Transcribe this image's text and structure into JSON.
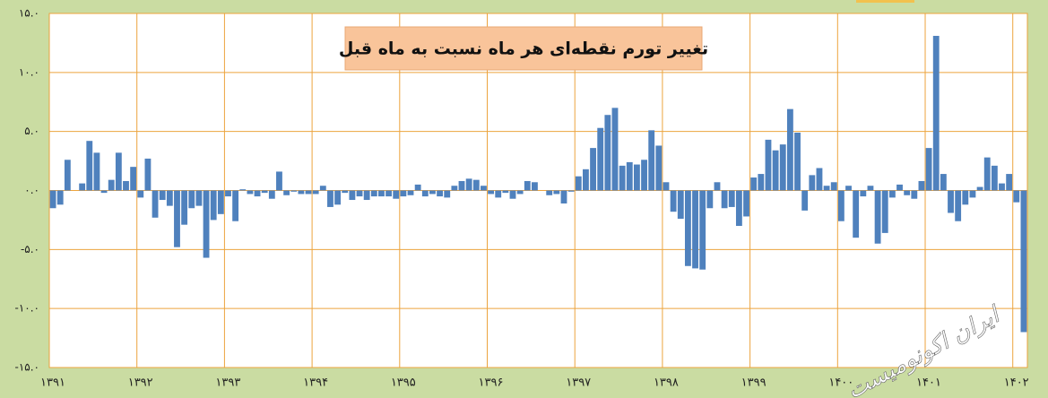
{
  "chart_data": {
    "type": "bar",
    "title": "تغییر تورم نقطه‌ای هر ماه نسبت به ماه قبل",
    "watermark": "ایران اکونومیست",
    "color": "#4f81bd",
    "grid": true,
    "ylim": [
      -15,
      15
    ],
    "yticks": [
      {
        "value": -15,
        "label": "-۱۵.۰"
      },
      {
        "value": -10,
        "label": "-۱۰.۰"
      },
      {
        "value": -5,
        "label": "-۵.۰"
      },
      {
        "value": 0,
        "label": "۰.۰"
      },
      {
        "value": 5,
        "label": "۵.۰"
      },
      {
        "value": 10,
        "label": "۱۰.۰"
      },
      {
        "value": 15,
        "label": "۱۵.۰"
      }
    ],
    "categories": [
      "۱۳۹۱",
      null,
      null,
      null,
      null,
      null,
      null,
      null,
      null,
      null,
      null,
      null,
      "۱۳۹۲",
      null,
      null,
      null,
      null,
      null,
      null,
      null,
      null,
      null,
      null,
      null,
      "۱۳۹۳",
      null,
      null,
      null,
      null,
      null,
      null,
      null,
      null,
      null,
      null,
      null,
      "۱۳۹۴",
      null,
      null,
      null,
      null,
      null,
      null,
      null,
      null,
      null,
      null,
      null,
      "۱۳۹۵",
      null,
      null,
      null,
      null,
      null,
      null,
      null,
      null,
      null,
      null,
      null,
      "۱۳۹۶",
      null,
      null,
      null,
      null,
      null,
      null,
      null,
      null,
      null,
      null,
      null,
      "۱۳۹۷",
      null,
      null,
      null,
      null,
      null,
      null,
      null,
      null,
      null,
      null,
      null,
      "۱۳۹۸",
      null,
      null,
      null,
      null,
      null,
      null,
      null,
      null,
      null,
      null,
      null,
      "۱۳۹۹",
      null,
      null,
      null,
      null,
      null,
      null,
      null,
      null,
      null,
      null,
      null,
      "۱۴۰۰",
      null,
      null,
      null,
      null,
      null,
      null,
      null,
      null,
      null,
      null,
      null,
      "۱۴۰۱",
      null,
      null,
      null,
      null,
      null,
      null,
      null,
      null,
      null,
      null,
      null,
      "۱۴۰۲",
      null
    ],
    "values": [
      -1.5,
      -1.2,
      2.6,
      0,
      0.6,
      4.2,
      3.2,
      -0.2,
      0.9,
      3.2,
      0.8,
      2.0,
      -0.6,
      2.7,
      -2.3,
      -0.8,
      -1.3,
      -4.8,
      -2.9,
      -1.5,
      -1.3,
      -5.7,
      -2.5,
      -2.0,
      -0.5,
      -2.6,
      0.1,
      -0.3,
      -0.5,
      -0.2,
      -0.7,
      1.6,
      -0.4,
      -0.1,
      -0.3,
      -0.3,
      -0.3,
      0.4,
      -1.4,
      -1.2,
      -0.2,
      -0.8,
      -0.5,
      -0.8,
      -0.5,
      -0.5,
      -0.5,
      -0.7,
      -0.5,
      -0.4,
      0.5,
      -0.5,
      -0.3,
      -0.5,
      -0.6,
      0.4,
      0.8,
      1.0,
      0.9,
      0.4,
      -0.3,
      -0.6,
      -0.2,
      -0.7,
      -0.3,
      0.8,
      0.7,
      0,
      -0.4,
      -0.3,
      -1.1,
      -0.1,
      1.2,
      1.8,
      3.6,
      5.3,
      6.4,
      7.0,
      2.1,
      2.4,
      2.2,
      2.6,
      5.1,
      3.8,
      0.7,
      -1.8,
      -2.4,
      -6.4,
      -6.6,
      -6.7,
      -1.5,
      0.7,
      -1.5,
      -1.4,
      -3.0,
      -2.2,
      1.1,
      1.4,
      4.3,
      3.4,
      3.9,
      6.9,
      4.9,
      -1.7,
      1.3,
      1.9,
      0.4,
      0.7,
      -2.6,
      0.4,
      -4.0,
      -0.5,
      0.4,
      -4.5,
      -3.6,
      -0.6,
      0.5,
      -0.4,
      -0.7,
      0.8,
      3.6,
      13.1,
      1.4,
      -1.9,
      -2.6,
      -1.2,
      -0.6,
      0.3,
      2.8,
      2.1,
      0.6,
      1.4,
      -1.0,
      -12.0
    ]
  }
}
